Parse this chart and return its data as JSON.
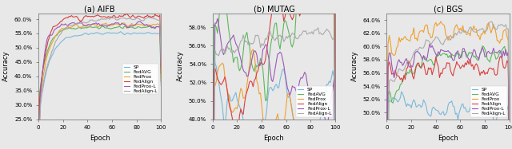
{
  "methods": [
    "SP",
    "FedAVG",
    "FedProx",
    "FedAlign",
    "FedProx-L",
    "FedAlign-L"
  ],
  "colors": [
    "#7ab8d9",
    "#5cb85c",
    "#f0a030",
    "#d94040",
    "#9b59b6",
    "#aaaaaa"
  ],
  "epochs": 101,
  "aifb": {
    "ylim": [
      25.0,
      62.0
    ],
    "yticks": [
      25.0,
      30.0,
      35.0,
      40.0,
      45.0,
      50.0,
      55.0,
      60.0
    ],
    "ylabel": "Accuracy",
    "xlabel": "Epoch",
    "title": "(a) AIFB",
    "legend_loc": "center right"
  },
  "mutag": {
    "ylim": [
      48.0,
      59.5
    ],
    "yticks": [
      48.0,
      50.0,
      52.0,
      54.0,
      56.0,
      58.0
    ],
    "ylabel": "Accuracy",
    "xlabel": "Epoch",
    "title": "(b) MUTAG",
    "legend_loc": "lower right"
  },
  "bgs": {
    "ylim": [
      49.0,
      65.0
    ],
    "yticks": [
      50.0,
      52.0,
      54.0,
      56.0,
      58.0,
      60.0,
      62.0,
      64.0
    ],
    "ylabel": "Accuracy",
    "xlabel": "Epoch",
    "title": "(c) BGS",
    "legend_loc": "lower right"
  },
  "background": "#e8e8e8"
}
